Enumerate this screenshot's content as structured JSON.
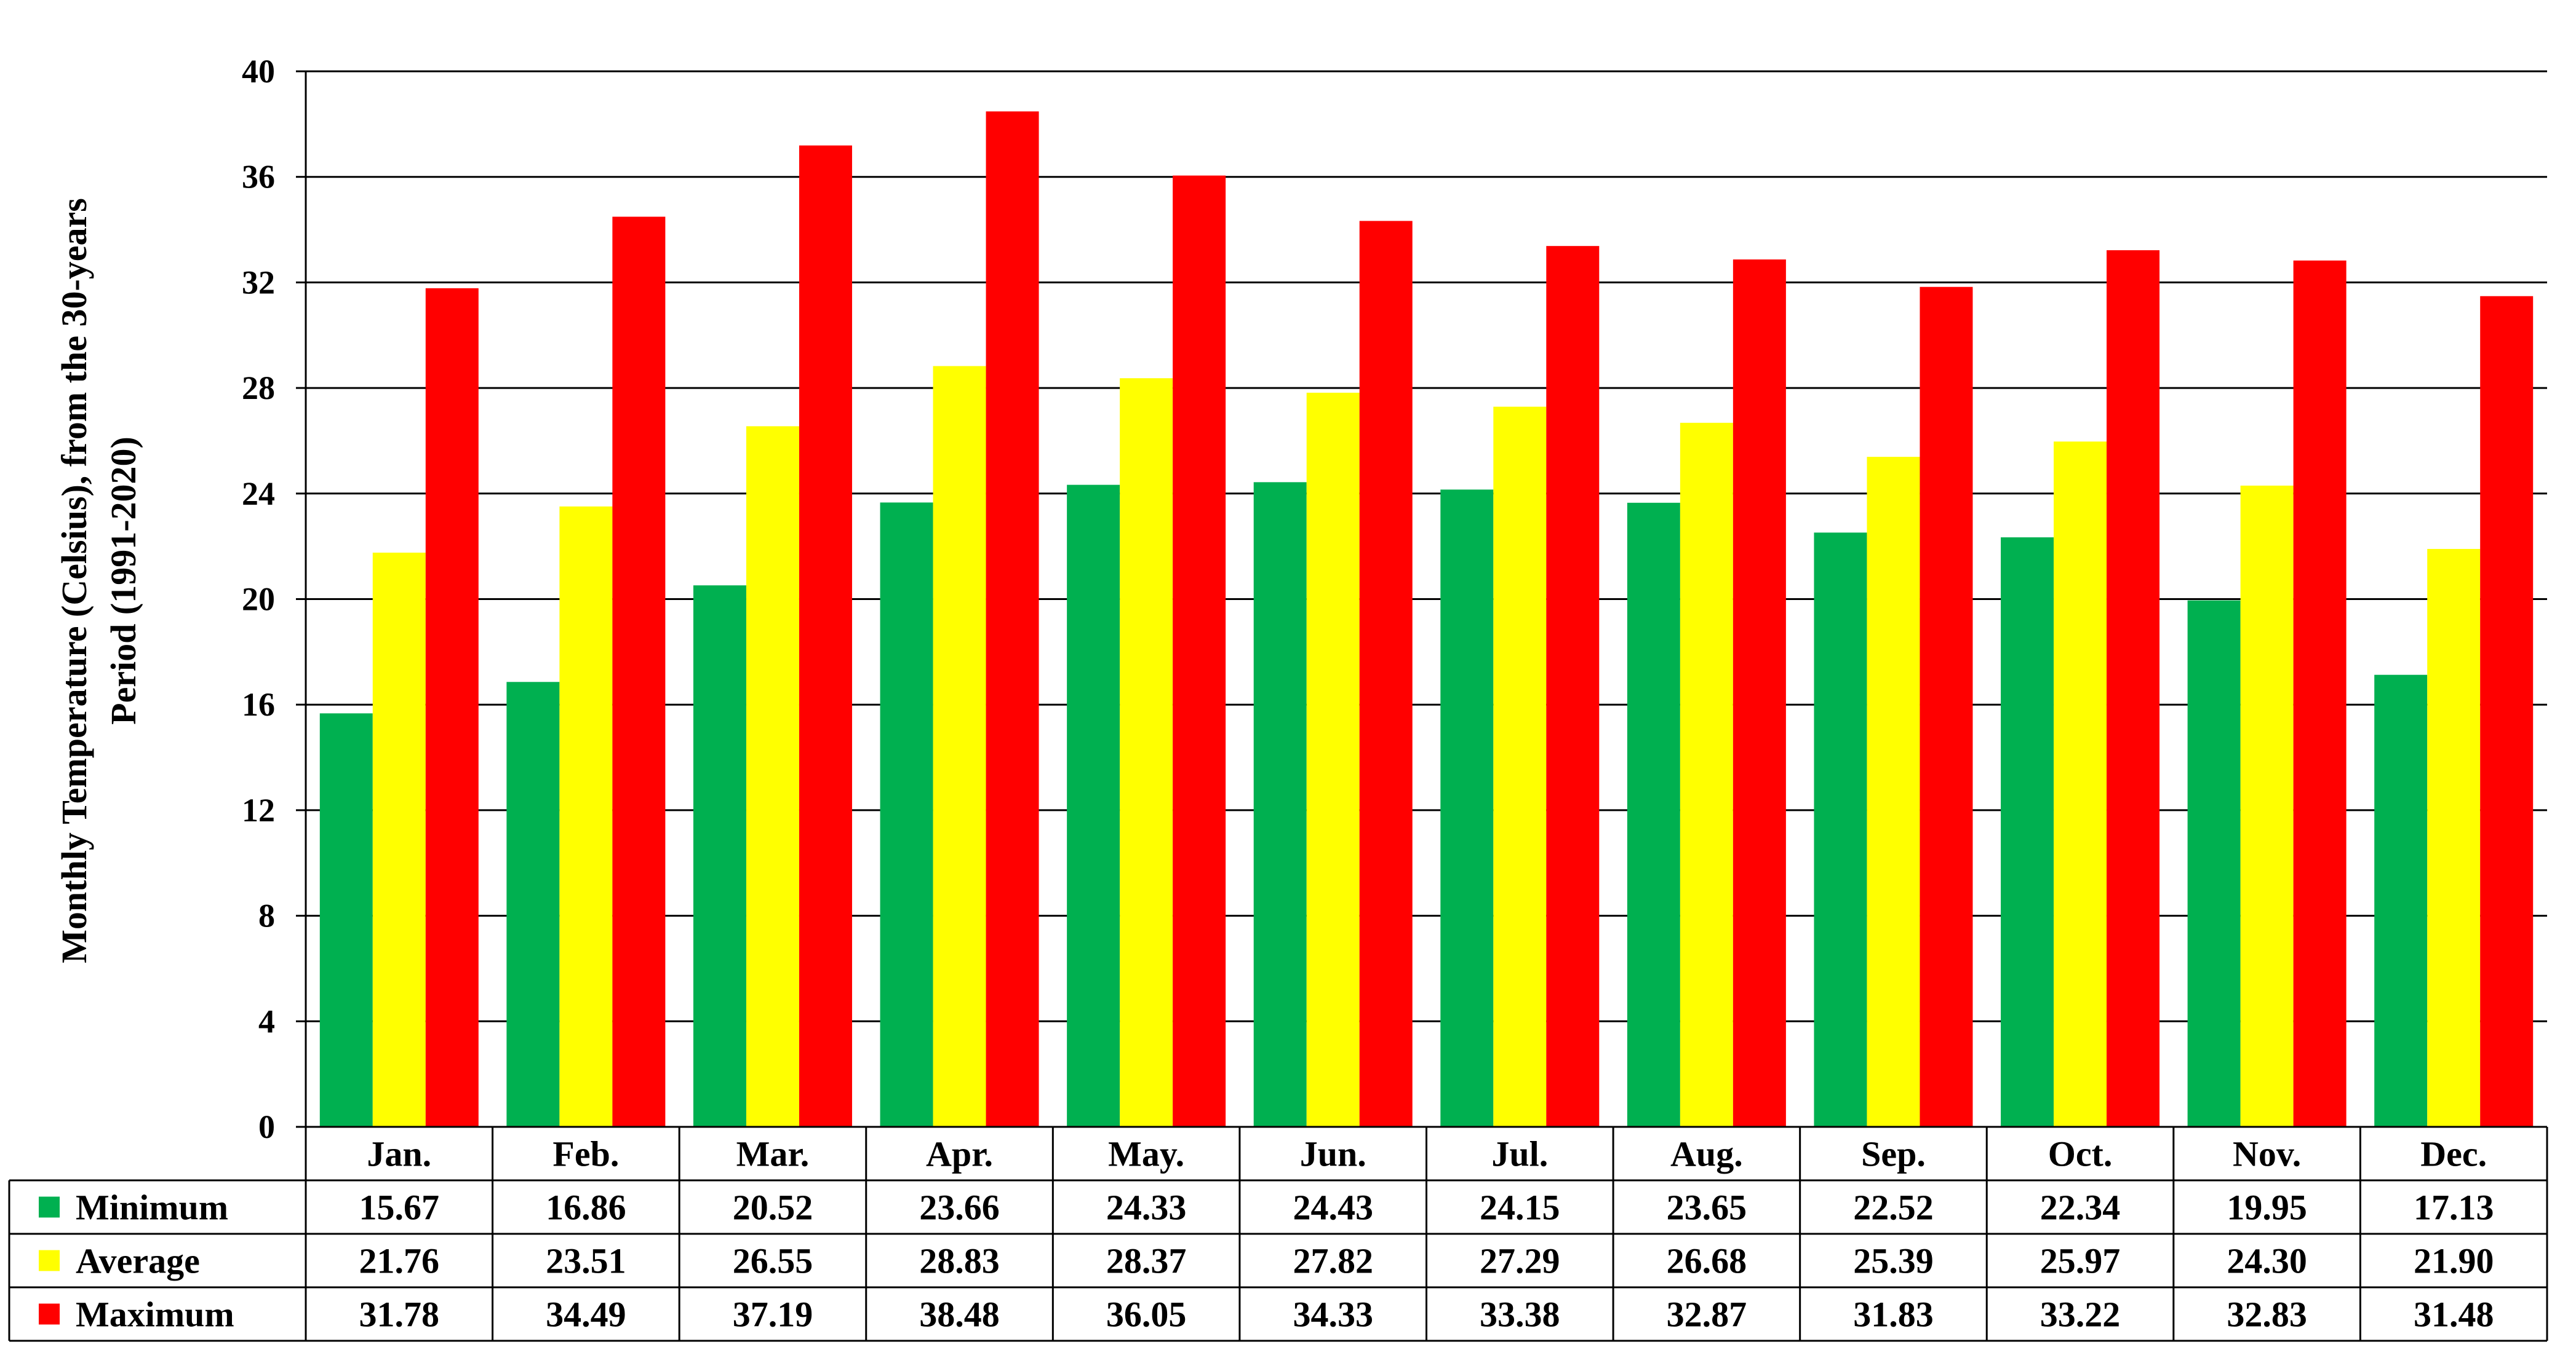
{
  "chart_data": {
    "type": "bar",
    "ylabel_lines": [
      "Monthly Temperature (Celsius), from the 30-years",
      "Period (1991-2020)"
    ],
    "ylim": [
      0,
      40
    ],
    "yticks": [
      0,
      4,
      8,
      12,
      16,
      20,
      24,
      28,
      32,
      36,
      40
    ],
    "grid": true,
    "legend_placement": "data-table-left",
    "categories": [
      "Jan.",
      "Feb.",
      "Mar.",
      "Apr.",
      "May.",
      "Jun.",
      "Jul.",
      "Aug.",
      "Sep.",
      "Oct.",
      "Nov.",
      "Dec."
    ],
    "series": [
      {
        "name": "Minimum",
        "color": "#00b050",
        "values": [
          15.67,
          16.86,
          20.52,
          23.66,
          24.33,
          24.43,
          24.15,
          23.65,
          22.52,
          22.34,
          19.95,
          17.13
        ],
        "labels": [
          "15.67",
          "16.86",
          "20.52",
          "23.66",
          "24.33",
          "24.43",
          "24.15",
          "23.65",
          "22.52",
          "22.34",
          "19.95",
          "17.13"
        ]
      },
      {
        "name": "Average",
        "color": "#ffff00",
        "values": [
          21.76,
          23.51,
          26.55,
          28.83,
          28.37,
          27.82,
          27.29,
          26.68,
          25.39,
          25.97,
          24.3,
          21.9
        ],
        "labels": [
          "21.76",
          "23.51",
          "26.55",
          "28.83",
          "28.37",
          "27.82",
          "27.29",
          "26.68",
          "25.39",
          "25.97",
          "24.30",
          "21.90"
        ]
      },
      {
        "name": "Maximum",
        "color": "#ff0000",
        "values": [
          31.78,
          34.49,
          37.19,
          38.48,
          36.05,
          34.33,
          33.38,
          32.87,
          31.83,
          33.22,
          32.83,
          31.48
        ],
        "labels": [
          "31.78",
          "34.49",
          "37.19",
          "38.48",
          "36.05",
          "34.33",
          "33.38",
          "32.87",
          "31.83",
          "33.22",
          "32.83",
          "31.48"
        ]
      }
    ]
  }
}
